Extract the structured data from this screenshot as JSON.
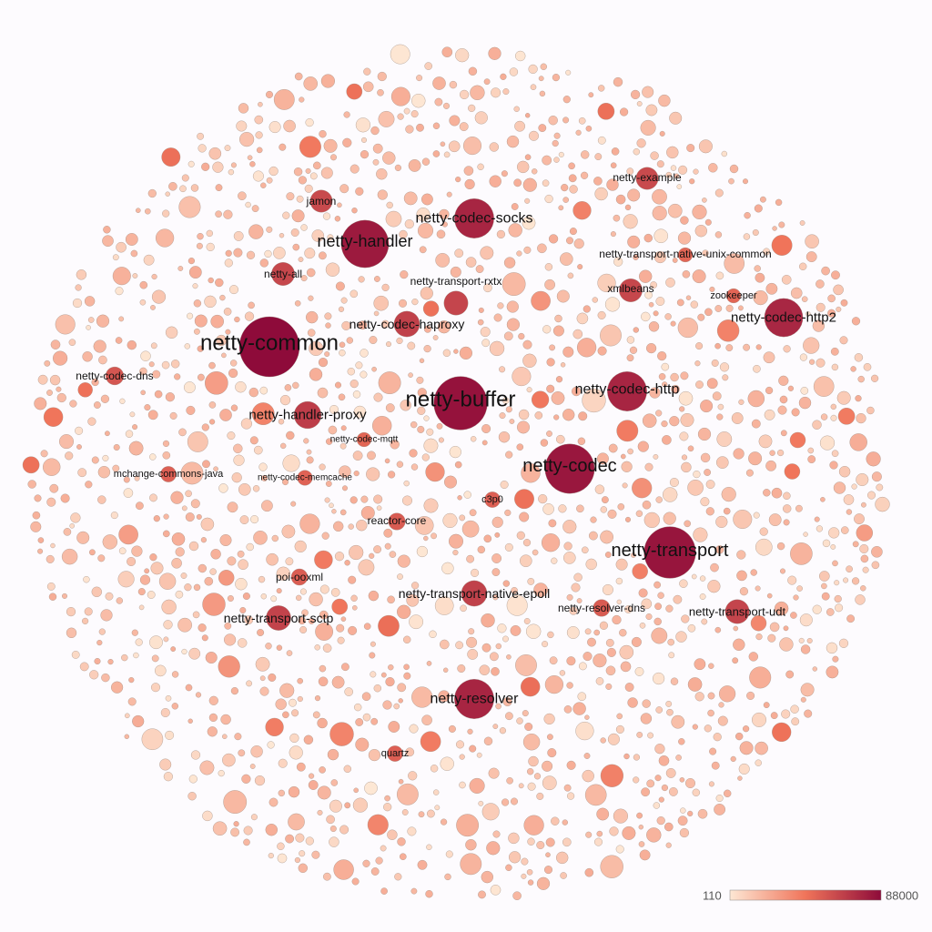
{
  "chart_data": {
    "type": "bubble",
    "value_range": [
      110,
      88000
    ],
    "color_scale": {
      "low": "#fde7d4",
      "mid": "#f0745a",
      "high": "#8e0b3a"
    },
    "legend": {
      "min_label": "110",
      "max_label": "88000",
      "placement": "bottom-right"
    },
    "labeled_nodes": [
      {
        "name": "netty-common",
        "value": 88000
      },
      {
        "name": "netty-buffer",
        "value": 70000
      },
      {
        "name": "netty-transport",
        "value": 65000
      },
      {
        "name": "netty-codec",
        "value": 60000
      },
      {
        "name": "netty-handler",
        "value": 55000
      },
      {
        "name": "netty-codec-socks",
        "value": 38000
      },
      {
        "name": "netty-codec-http",
        "value": 38000
      },
      {
        "name": "netty-codec-http2",
        "value": 36000
      },
      {
        "name": "netty-resolver",
        "value": 38000
      },
      {
        "name": "netty-handler-proxy",
        "value": 18000
      },
      {
        "name": "netty-codec-haproxy",
        "value": 16000
      },
      {
        "name": "netty-transport-native-epoll",
        "value": 16000
      },
      {
        "name": "netty-transport-sctp",
        "value": 15000
      },
      {
        "name": "netty-transport-udt",
        "value": 14000
      },
      {
        "name": "netty-transport-rxtx",
        "value": 14000
      },
      {
        "name": "netty-all",
        "value": 13000
      },
      {
        "name": "xmlbeans",
        "value": 13000
      },
      {
        "name": "jamon",
        "value": 12000
      },
      {
        "name": "netty-example",
        "value": 12000
      },
      {
        "name": "netty-codec-dns",
        "value": 8000
      },
      {
        "name": "netty-resolver-dns",
        "value": 7000
      },
      {
        "name": "reactor-core",
        "value": 7000
      },
      {
        "name": "poi-ooxml",
        "value": 6500
      },
      {
        "name": "quartz",
        "value": 6000
      },
      {
        "name": "mchange-commons-java",
        "value": 6000
      },
      {
        "name": "c3p0",
        "value": 6000
      },
      {
        "name": "netty-codec-memcache",
        "value": 5500
      },
      {
        "name": "netty-codec-mqtt",
        "value": 5000
      },
      {
        "name": "netty-transport-native-unix-common",
        "value": 5000
      },
      {
        "name": "zookeeper",
        "value": 5000
      }
    ],
    "unlabeled_nodes": 1560
  }
}
